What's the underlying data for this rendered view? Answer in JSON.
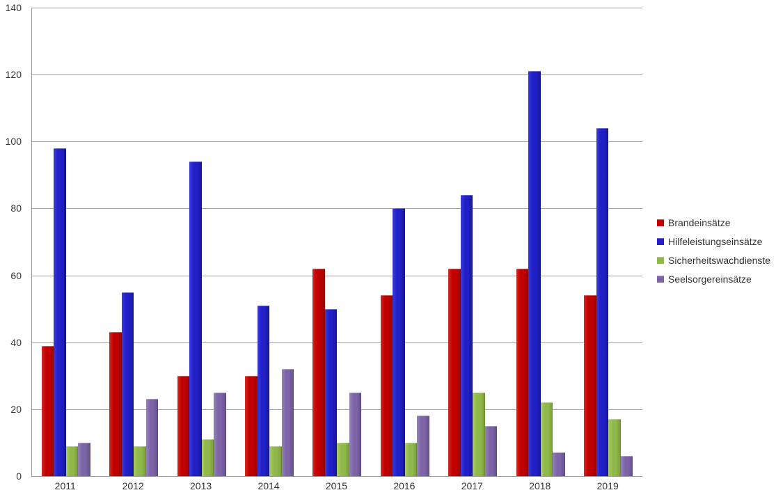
{
  "chart_data": {
    "type": "bar",
    "title": "",
    "categories": [
      "2011",
      "2012",
      "2013",
      "2014",
      "2015",
      "2016",
      "2017",
      "2018",
      "2019"
    ],
    "series": [
      {
        "name": "Brandeinsätze",
        "color": "#c00000",
        "color_light": "#d42a1e",
        "color_dark": "#9e0000",
        "values": [
          39,
          43,
          30,
          30,
          62,
          54,
          62,
          62,
          54
        ]
      },
      {
        "name": "Hilfeleistungseinsätze",
        "color": "#2020c6",
        "color_light": "#3c3cdc",
        "color_dark": "#16169a",
        "values": [
          98,
          55,
          94,
          51,
          50,
          80,
          84,
          121,
          104
        ]
      },
      {
        "name": "Sicherheitswachdienste",
        "color": "#90b94b",
        "color_light": "#abcb66",
        "color_dark": "#789c38",
        "values": [
          9,
          9,
          11,
          9,
          10,
          10,
          25,
          22,
          17
        ]
      },
      {
        "name": "Seelsorgereinsätze",
        "color": "#7c64a6",
        "color_light": "#9583b9",
        "color_dark": "#64508c",
        "values": [
          10,
          23,
          25,
          32,
          25,
          18,
          15,
          7,
          6
        ]
      }
    ],
    "ylim": [
      0,
      140
    ],
    "ytick_step": 20,
    "yticks": [
      "0",
      "20",
      "40",
      "60",
      "80",
      "100",
      "120",
      "140"
    ],
    "grid": true,
    "legend_position": "right",
    "gridline_color": "#a3a3a3",
    "axis_color": "#9b9b9b",
    "text_color": "#333333"
  }
}
